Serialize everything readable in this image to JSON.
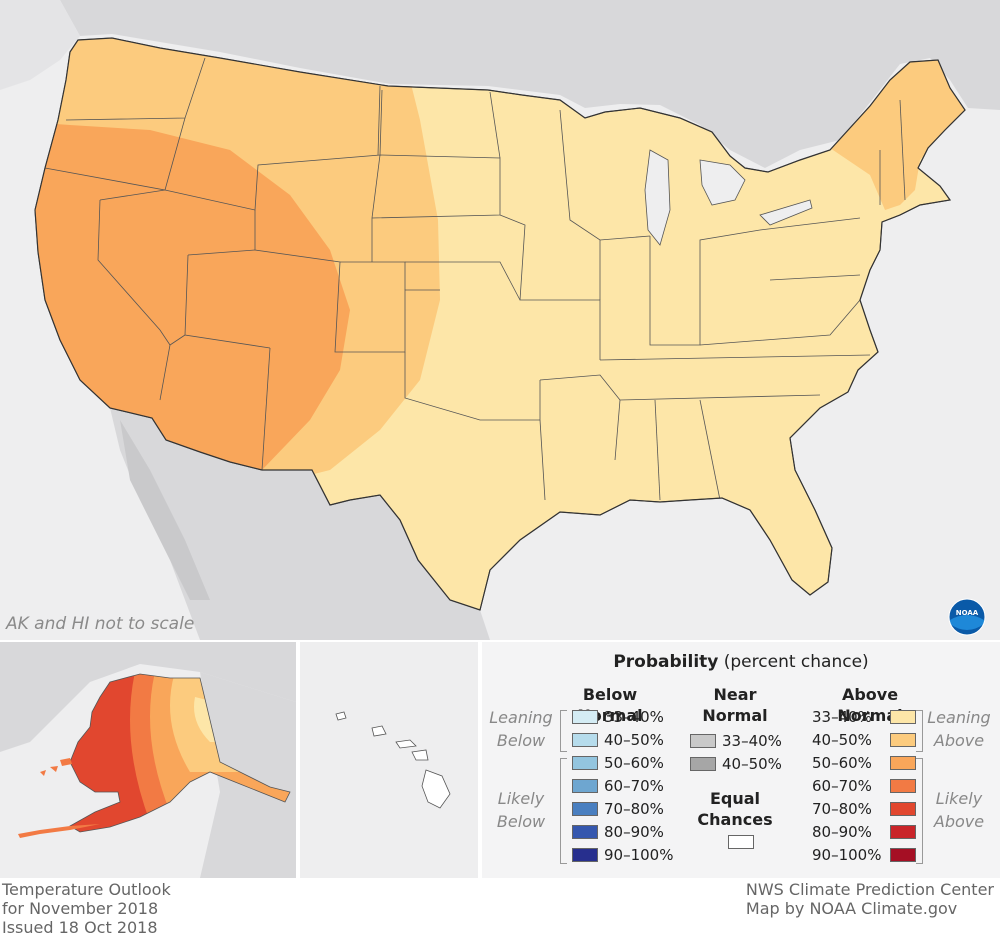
{
  "map": {
    "scale_note": "AK and HI not to scale",
    "logo_text": "NOAA"
  },
  "legend": {
    "title_bold": "Probability",
    "title_rest": " (percent chance)",
    "below_normal": {
      "heading": "Below Normal",
      "leaning_label": [
        "Leaning",
        "Below"
      ],
      "likely_label": [
        "Likely",
        "Below"
      ],
      "items": [
        {
          "label": "33–40%",
          "color": "#d4ecf4"
        },
        {
          "label": "40–50%",
          "color": "#b6dcec"
        },
        {
          "label": "50–60%",
          "color": "#93c5df"
        },
        {
          "label": "60–70%",
          "color": "#6ea6d0"
        },
        {
          "label": "70–80%",
          "color": "#4a7fc0"
        },
        {
          "label": "80–90%",
          "color": "#3557ae"
        },
        {
          "label": "90–100%",
          "color": "#272f8e"
        }
      ]
    },
    "near_normal": {
      "heading": [
        "Near",
        "Normal"
      ],
      "items": [
        {
          "label": "33–40%",
          "color": "#c9c9c9"
        },
        {
          "label": "40–50%",
          "color": "#a6a6a6"
        }
      ]
    },
    "equal_chances": {
      "heading": [
        "Equal",
        "Chances"
      ],
      "color": "#ffffff"
    },
    "above_normal": {
      "heading": "Above Normal",
      "leaning_label": [
        "Leaning",
        "Above"
      ],
      "likely_label": [
        "Likely",
        "Above"
      ],
      "items": [
        {
          "label": "33–40%",
          "color": "#fde6a8"
        },
        {
          "label": "40–50%",
          "color": "#fccb7e"
        },
        {
          "label": "50–60%",
          "color": "#f9a65a"
        },
        {
          "label": "60–70%",
          "color": "#f27a44"
        },
        {
          "label": "70–80%",
          "color": "#e1472f"
        },
        {
          "label": "80–90%",
          "color": "#c92429"
        },
        {
          "label": "90–100%",
          "color": "#a50f24"
        }
      ]
    }
  },
  "footer": {
    "left": [
      "Temperature Outlook",
      "for November 2018",
      "Issued 18 Oct 2018"
    ],
    "right": [
      "NWS Climate Prediction Center",
      "Map by NOAA Climate.gov"
    ]
  },
  "colors": {
    "background_land": "#d8d8da",
    "water": "#eeeeef",
    "leaning_above": "#fde6a8",
    "above_40_50": "#fccb7e",
    "above_50_60": "#f9a65a",
    "above_60_70": "#f27a44",
    "above_70_80": "#e1472f"
  }
}
